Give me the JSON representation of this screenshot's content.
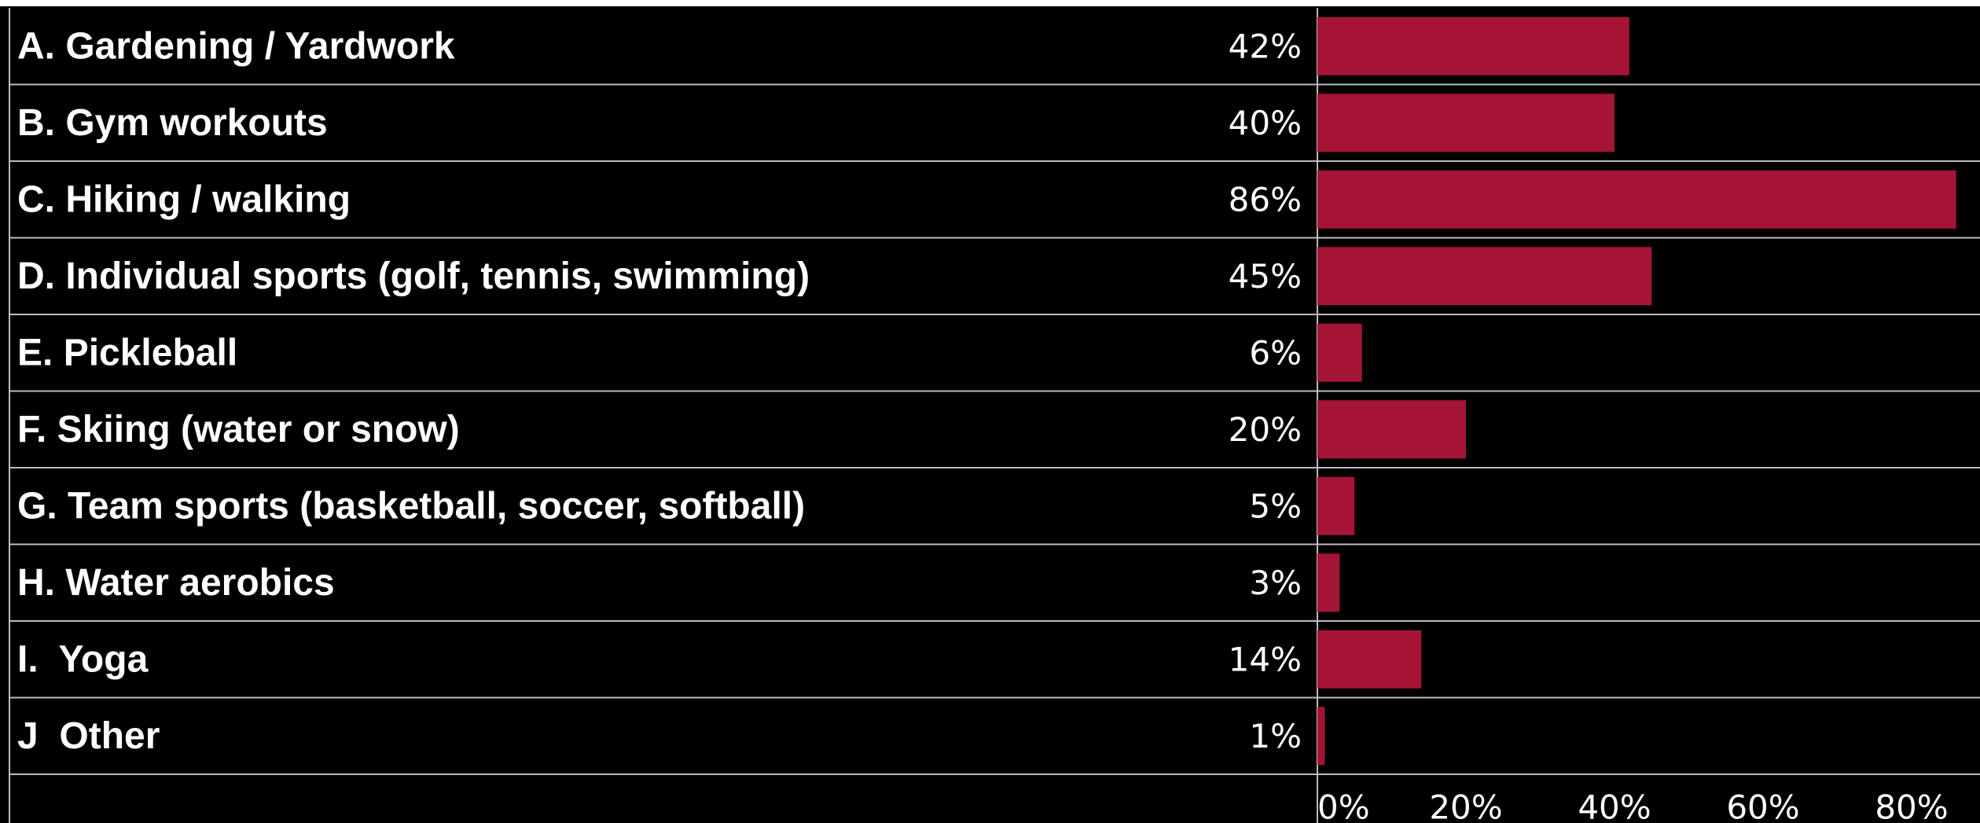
{
  "chart_data": {
    "type": "bar",
    "orientation": "horizontal",
    "categories": [
      "A. Gardening / Yardwork",
      "B. Gym workouts",
      "C. Hiking / walking",
      "D. Individual sports (golf, tennis, swimming)",
      "E. Pickleball",
      "F. Skiing (water or snow)",
      "G. Team sports (basketball, soccer, softball)",
      "H. Water aerobics",
      "I.  Yoga",
      "J  Other"
    ],
    "values": [
      42,
      40,
      86,
      45,
      6,
      20,
      5,
      3,
      14,
      1
    ],
    "value_labels": [
      "42%",
      "40%",
      "86%",
      "45%",
      "6%",
      "20%",
      "5%",
      "3%",
      "14%",
      "1%"
    ],
    "x_ticks": [
      0,
      20,
      40,
      60,
      80
    ],
    "x_tick_labels": [
      "0%",
      "20%",
      "40%",
      "60%",
      "80%"
    ],
    "xlim": [
      0,
      88
    ],
    "grid": false,
    "legend": "none"
  },
  "colors": {
    "background": "#000000",
    "bar": "#a51434",
    "text": "#ffffff",
    "divider": "#bdbdbd",
    "top_rule": "#ffffff"
  }
}
